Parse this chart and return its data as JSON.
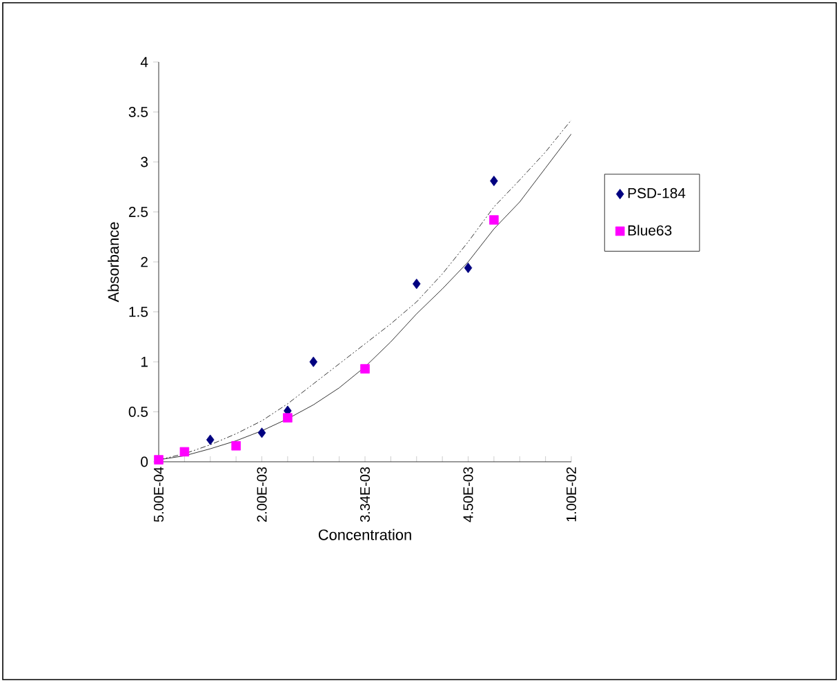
{
  "chart_data": {
    "type": "scatter",
    "xlabel": "Concentration",
    "ylabel": "Absorbance",
    "categories": [
      "5.00E-04",
      null,
      null,
      null,
      "2.00E-03",
      null,
      null,
      null,
      "3.34E-03",
      null,
      null,
      null,
      "4.50E-03",
      null,
      null,
      null,
      "1.00E-02"
    ],
    "ylim": [
      0,
      4
    ],
    "yticks": [
      0,
      0.5,
      1,
      1.5,
      2,
      2.5,
      3,
      3.5,
      4
    ],
    "legend": "right",
    "series": [
      {
        "type": "line",
        "color": "#000000",
        "line_style": "dashed",
        "marker": "none",
        "values": [
          0.02,
          0.08,
          0.17,
          0.28,
          0.41,
          0.58,
          0.78,
          0.98,
          1.18,
          1.38,
          1.6,
          1.88,
          2.2,
          2.55,
          2.82,
          3.1,
          3.42
        ]
      },
      {
        "type": "line",
        "color": "#000000",
        "line_style": "solid",
        "marker": "none",
        "values": [
          0.02,
          0.06,
          0.13,
          0.21,
          0.31,
          0.43,
          0.57,
          0.74,
          0.95,
          1.2,
          1.48,
          1.73,
          2.0,
          2.33,
          2.6,
          2.94,
          3.28
        ]
      },
      {
        "name": "PSD-184",
        "marker": "diamond",
        "color": "#000080",
        "values": [
          null,
          null,
          0.22,
          null,
          0.29,
          0.51,
          1.0,
          null,
          null,
          null,
          1.78,
          null,
          1.94,
          2.81,
          null,
          null,
          null
        ]
      },
      {
        "name": "Blue63",
        "marker": "square",
        "color": "#ff00ff",
        "values": [
          0.02,
          0.1,
          null,
          0.16,
          null,
          0.44,
          null,
          null,
          0.93,
          null,
          null,
          null,
          null,
          2.42,
          null,
          null,
          null
        ]
      }
    ]
  }
}
